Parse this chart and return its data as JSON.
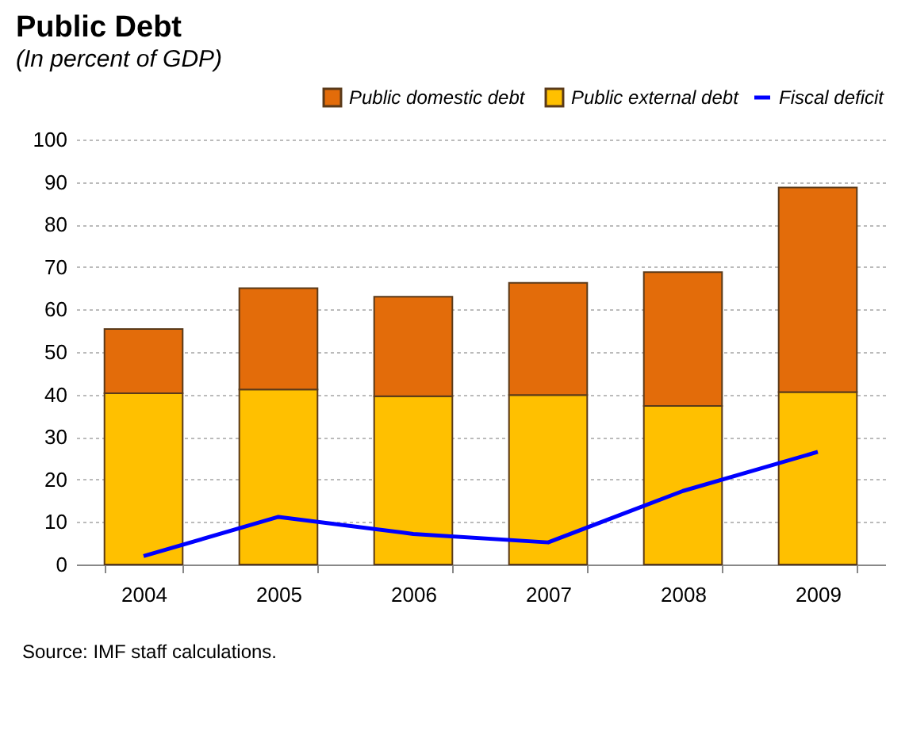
{
  "chart_data": {
    "type": "bar",
    "title": "Public Debt",
    "subtitle": "(In percent of GDP)",
    "categories": [
      "2004",
      "2005",
      "2006",
      "2007",
      "2008",
      "2009"
    ],
    "stacked": true,
    "series": [
      {
        "name": "Public external debt",
        "color": "#ffc000",
        "values": [
          40.3,
          41.2,
          39.6,
          39.9,
          37.3,
          40.6
        ]
      },
      {
        "name": "Public domestic debt",
        "color": "#e36c0a",
        "values": [
          15.1,
          23.8,
          23.4,
          26.4,
          31.5,
          48.1
        ]
      },
      {
        "name": "Fiscal deficit",
        "type": "line",
        "color": "#0000ff",
        "values": [
          2,
          11.2,
          7.2,
          5.2,
          17.3,
          26.5
        ]
      }
    ],
    "ylim": [
      0,
      100
    ],
    "yticks": [
      0,
      10,
      20,
      30,
      40,
      50,
      60,
      70,
      80,
      90,
      100
    ],
    "grid": "y",
    "legend": "top right",
    "annotations": [
      "Source: IMF staff calculations."
    ]
  }
}
